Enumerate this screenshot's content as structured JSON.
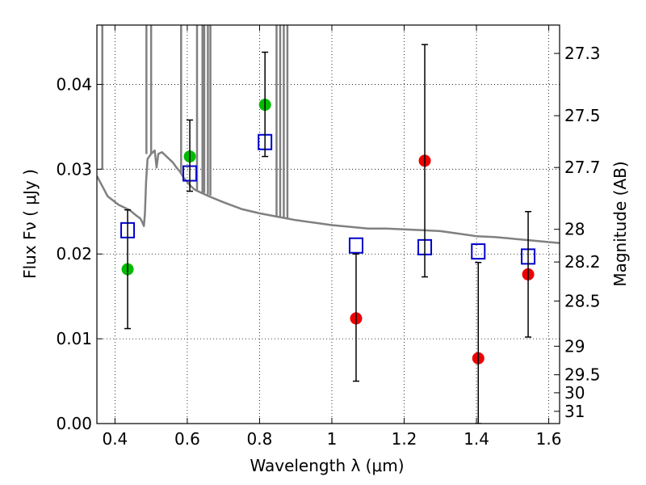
{
  "chart_data": {
    "type": "scatter",
    "xlabel": "Wavelength  λ (μm)",
    "ylabel": "Flux  Fν  ( μJy )",
    "y2label": "Magnitude (AB)",
    "xlim": [
      0.35,
      1.63
    ],
    "ylim": [
      0.0,
      0.047
    ],
    "grid": true,
    "x_ticks": [
      {
        "value": 0.4,
        "label": "0.4"
      },
      {
        "value": 0.6,
        "label": "0.6"
      },
      {
        "value": 0.8,
        "label": "0.8"
      },
      {
        "value": 1.0,
        "label": "1"
      },
      {
        "value": 1.2,
        "label": "1.2"
      },
      {
        "value": 1.4,
        "label": "1.4"
      },
      {
        "value": 1.6,
        "label": "1.6"
      }
    ],
    "y_ticks": [
      {
        "value": 0.0,
        "label": "0.00"
      },
      {
        "value": 0.01,
        "label": "0.01"
      },
      {
        "value": 0.02,
        "label": "0.02"
      },
      {
        "value": 0.03,
        "label": "0.03"
      },
      {
        "value": 0.04,
        "label": "0.04"
      }
    ],
    "y2_ticks": [
      {
        "value": 27.3,
        "label": "27.3"
      },
      {
        "value": 27.5,
        "label": "27.5"
      },
      {
        "value": 27.7,
        "label": "27.7"
      },
      {
        "value": 28.0,
        "label": "28"
      },
      {
        "value": 28.2,
        "label": "28.2"
      },
      {
        "value": 28.5,
        "label": "28.5"
      },
      {
        "value": 29.0,
        "label": "29"
      },
      {
        "value": 29.5,
        "label": "29.5"
      },
      {
        "value": 30.0,
        "label": "30"
      },
      {
        "value": 31.0,
        "label": "31"
      }
    ],
    "series": [
      {
        "marker": "line",
        "color": "#808080",
        "x": [
          0.35,
          0.38,
          0.41,
          0.44,
          0.46,
          0.47,
          0.475,
          0.48,
          0.483,
          0.486,
          0.49,
          0.5,
          0.51,
          0.515,
          0.52,
          0.53,
          0.54,
          0.55,
          0.56,
          0.57,
          0.58,
          0.59,
          0.6,
          0.61,
          0.62,
          0.63,
          0.64,
          0.65,
          0.66,
          0.7,
          0.75,
          0.8,
          0.85,
          0.9,
          0.95,
          1.0,
          1.05,
          1.1,
          1.15,
          1.2,
          1.25,
          1.3,
          1.35,
          1.4,
          1.45,
          1.5,
          1.55,
          1.6,
          1.63
        ],
        "y": [
          0.0292,
          0.0268,
          0.0258,
          0.0252,
          0.0245,
          0.0242,
          0.0238,
          0.0233,
          0.0248,
          0.0285,
          0.0312,
          0.0318,
          0.0322,
          0.0302,
          0.0318,
          0.032,
          0.0316,
          0.0312,
          0.0308,
          0.0302,
          0.0297,
          0.029,
          0.0285,
          0.028,
          0.0276,
          0.0274,
          0.0272,
          0.027,
          0.0268,
          0.0261,
          0.0253,
          0.0248,
          0.0244,
          0.024,
          0.0237,
          0.0234,
          0.0232,
          0.023,
          0.023,
          0.0229,
          0.0228,
          0.0227,
          0.0224,
          0.0221,
          0.022,
          0.0218,
          0.0216,
          0.0214,
          0.0213
        ]
      },
      {
        "marker": "vertical-lines",
        "color": "#808080",
        "x": [
          0.365,
          0.487,
          0.5,
          0.583,
          0.627,
          0.642,
          0.647,
          0.657,
          0.664,
          0.847,
          0.857,
          0.867,
          0.877
        ],
        "y_from": [
          0.03,
          0.0318,
          0.0318,
          0.0295,
          0.0275,
          0.0272,
          0.0272,
          0.027,
          0.0269,
          0.0243,
          0.0243,
          0.0242,
          0.0241
        ],
        "y_to": [
          0.047,
          0.047,
          0.047,
          0.047,
          0.047,
          0.047,
          0.047,
          0.047,
          0.047,
          0.047,
          0.047,
          0.047,
          0.047
        ]
      },
      {
        "marker": "square",
        "color": "#0000cc",
        "x": [
          0.435,
          0.607,
          0.815,
          1.067,
          1.257,
          1.405,
          1.543
        ],
        "y": [
          0.0228,
          0.0295,
          0.0332,
          0.021,
          0.0208,
          0.0203,
          0.0197
        ]
      },
      {
        "marker": "circle",
        "color": "#00bb00",
        "x": [
          0.435,
          0.607,
          0.815
        ],
        "y": [
          0.0182,
          0.0315,
          0.0376
        ]
      },
      {
        "marker": "circle",
        "color": "#ee0000",
        "x": [
          1.067,
          1.257,
          1.405,
          1.543
        ],
        "y": [
          0.0124,
          0.031,
          0.0077,
          0.0176
        ]
      },
      {
        "marker": "errorbar",
        "color": "#000000",
        "x": [
          0.435,
          0.607,
          0.815,
          1.067,
          1.257,
          1.405,
          1.543
        ],
        "y_low": [
          0.0112,
          0.0274,
          0.0315,
          0.005,
          0.0173,
          0.0,
          0.0102
        ],
        "y_high": [
          0.0252,
          0.0358,
          0.0438,
          0.02,
          0.0447,
          0.019,
          0.025
        ]
      }
    ]
  }
}
